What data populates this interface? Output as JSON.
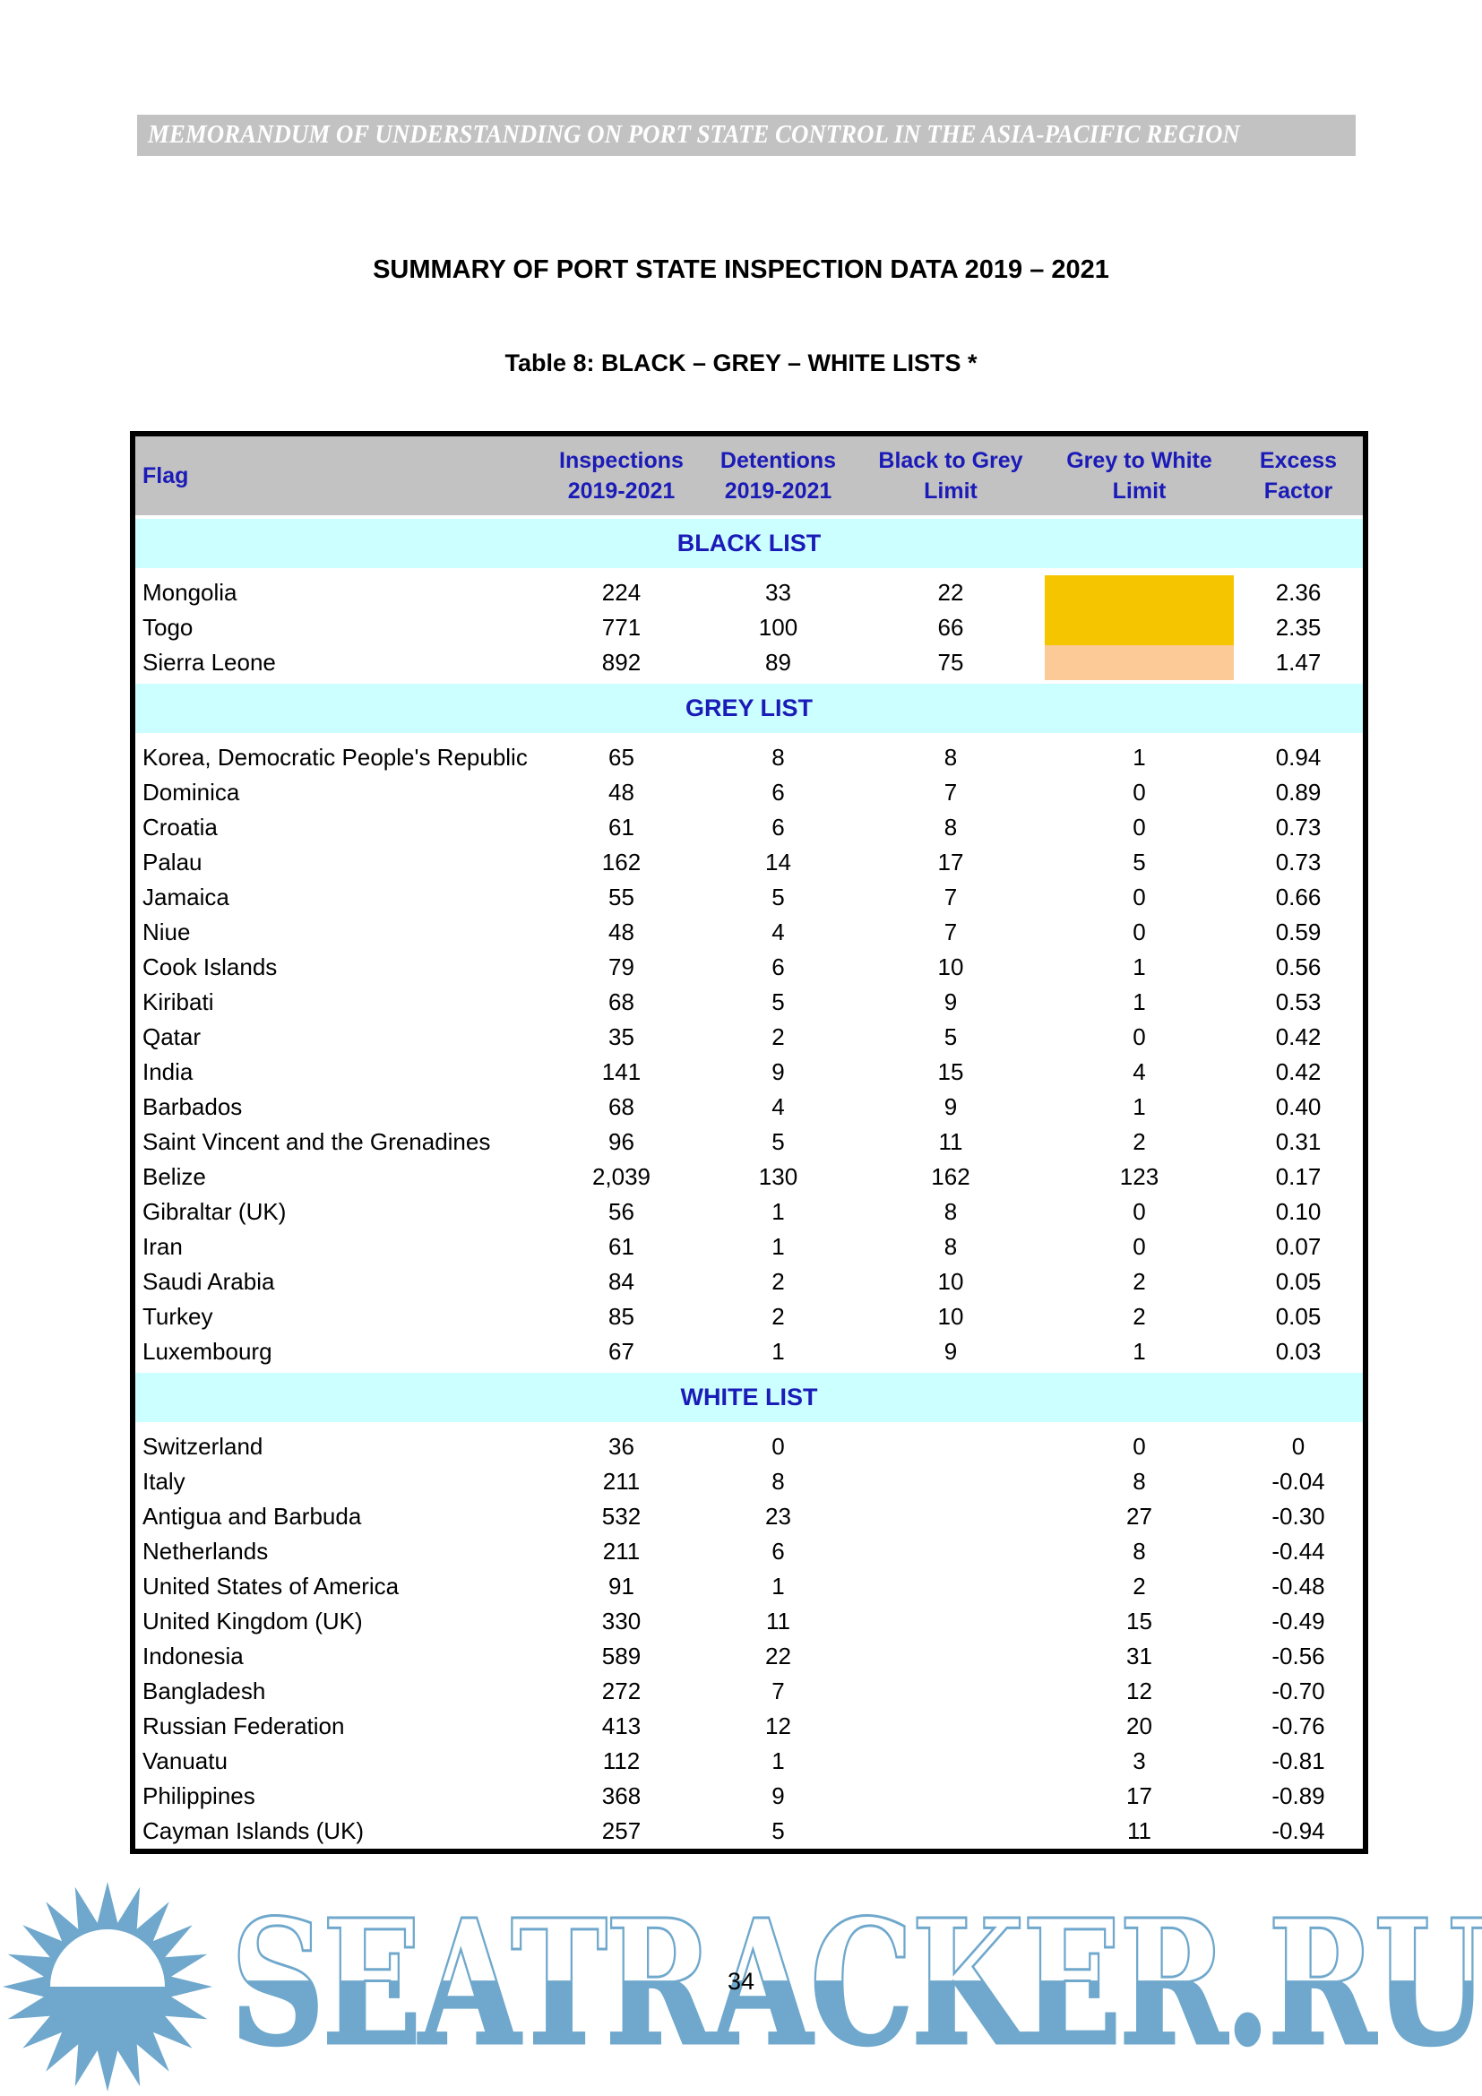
{
  "page": {
    "banner": "MEMORANDUM OF UNDERSTANDING ON PORT STATE CONTROL IN THE ASIA-PACIFIC REGION",
    "title": "SUMMARY OF PORT STATE INSPECTION DATA 2019 – 2021",
    "subtitle": "Table 8: BLACK – GREY – WHITE LISTS *",
    "page_number": "34",
    "watermark": "SEATRACKER.RU"
  },
  "colors": {
    "grey": "#C2C2C2",
    "blue": "#1B1BB8",
    "cyan": "#CCFFFF",
    "gold": "#F5C500",
    "peach": "#FBCA96",
    "wmblue": "#6FA8CC"
  },
  "table": {
    "columns": [
      {
        "line1": "Flag",
        "line2": ""
      },
      {
        "line1": "Inspections",
        "line2": "2019-2021"
      },
      {
        "line1": "Detentions",
        "line2": "2019-2021"
      },
      {
        "line1": "Black to Grey",
        "line2": "Limit"
      },
      {
        "line1": "Grey to White",
        "line2": "Limit"
      },
      {
        "line1": "Excess",
        "line2": "Factor"
      }
    ],
    "sections": [
      {
        "name": "BLACK LIST",
        "rows": [
          {
            "flag": "Mongolia",
            "inspections": "224",
            "detentions": "33",
            "btg": "22",
            "gtw": "",
            "excess": "2.36",
            "gtw_bg": "gold"
          },
          {
            "flag": "Togo",
            "inspections": "771",
            "detentions": "100",
            "btg": "66",
            "gtw": "",
            "excess": "2.35",
            "gtw_bg": "gold"
          },
          {
            "flag": "Sierra Leone",
            "inspections": "892",
            "detentions": "89",
            "btg": "75",
            "gtw": "",
            "excess": "1.47",
            "gtw_bg": "peach"
          }
        ]
      },
      {
        "name": "GREY LIST",
        "rows": [
          {
            "flag": "Korea, Democratic People's Republic",
            "inspections": "65",
            "detentions": "8",
            "btg": "8",
            "gtw": "1",
            "excess": "0.94"
          },
          {
            "flag": "Dominica",
            "inspections": "48",
            "detentions": "6",
            "btg": "7",
            "gtw": "0",
            "excess": "0.89"
          },
          {
            "flag": "Croatia",
            "inspections": "61",
            "detentions": "6",
            "btg": "8",
            "gtw": "0",
            "excess": "0.73"
          },
          {
            "flag": "Palau",
            "inspections": "162",
            "detentions": "14",
            "btg": "17",
            "gtw": "5",
            "excess": "0.73"
          },
          {
            "flag": "Jamaica",
            "inspections": "55",
            "detentions": "5",
            "btg": "7",
            "gtw": "0",
            "excess": "0.66"
          },
          {
            "flag": "Niue",
            "inspections": "48",
            "detentions": "4",
            "btg": "7",
            "gtw": "0",
            "excess": "0.59"
          },
          {
            "flag": "Cook Islands",
            "inspections": "79",
            "detentions": "6",
            "btg": "10",
            "gtw": "1",
            "excess": "0.56"
          },
          {
            "flag": "Kiribati",
            "inspections": "68",
            "detentions": "5",
            "btg": "9",
            "gtw": "1",
            "excess": "0.53"
          },
          {
            "flag": "Qatar",
            "inspections": "35",
            "detentions": "2",
            "btg": "5",
            "gtw": "0",
            "excess": "0.42"
          },
          {
            "flag": "India",
            "inspections": "141",
            "detentions": "9",
            "btg": "15",
            "gtw": "4",
            "excess": "0.42"
          },
          {
            "flag": "Barbados",
            "inspections": "68",
            "detentions": "4",
            "btg": "9",
            "gtw": "1",
            "excess": "0.40"
          },
          {
            "flag": "Saint Vincent and the Grenadines",
            "inspections": "96",
            "detentions": "5",
            "btg": "11",
            "gtw": "2",
            "excess": "0.31"
          },
          {
            "flag": "Belize",
            "inspections": "2,039",
            "detentions": "130",
            "btg": "162",
            "gtw": "123",
            "excess": "0.17"
          },
          {
            "flag": "Gibraltar (UK)",
            "inspections": "56",
            "detentions": "1",
            "btg": "8",
            "gtw": "0",
            "excess": "0.10"
          },
          {
            "flag": "Iran",
            "inspections": "61",
            "detentions": "1",
            "btg": "8",
            "gtw": "0",
            "excess": "0.07"
          },
          {
            "flag": "Saudi Arabia",
            "inspections": "84",
            "detentions": "2",
            "btg": "10",
            "gtw": "2",
            "excess": "0.05"
          },
          {
            "flag": "Turkey",
            "inspections": "85",
            "detentions": "2",
            "btg": "10",
            "gtw": "2",
            "excess": "0.05"
          },
          {
            "flag": "Luxembourg",
            "inspections": "67",
            "detentions": "1",
            "btg": "9",
            "gtw": "1",
            "excess": "0.03"
          }
        ]
      },
      {
        "name": "WHITE LIST",
        "rows": [
          {
            "flag": "Switzerland",
            "inspections": "36",
            "detentions": "0",
            "btg": "",
            "gtw": "0",
            "excess": "0"
          },
          {
            "flag": "Italy",
            "inspections": "211",
            "detentions": "8",
            "btg": "",
            "gtw": "8",
            "excess": "-0.04"
          },
          {
            "flag": "Antigua and Barbuda",
            "inspections": "532",
            "detentions": "23",
            "btg": "",
            "gtw": "27",
            "excess": "-0.30"
          },
          {
            "flag": "Netherlands",
            "inspections": "211",
            "detentions": "6",
            "btg": "",
            "gtw": "8",
            "excess": "-0.44"
          },
          {
            "flag": "United States of America",
            "inspections": "91",
            "detentions": "1",
            "btg": "",
            "gtw": "2",
            "excess": "-0.48"
          },
          {
            "flag": "United Kingdom (UK)",
            "inspections": "330",
            "detentions": "11",
            "btg": "",
            "gtw": "15",
            "excess": "-0.49"
          },
          {
            "flag": "Indonesia",
            "inspections": "589",
            "detentions": "22",
            "btg": "",
            "gtw": "31",
            "excess": "-0.56"
          },
          {
            "flag": "Bangladesh",
            "inspections": "272",
            "detentions": "7",
            "btg": "",
            "gtw": "12",
            "excess": "-0.70"
          },
          {
            "flag": "Russian Federation",
            "inspections": "413",
            "detentions": "12",
            "btg": "",
            "gtw": "20",
            "excess": "-0.76"
          },
          {
            "flag": "Vanuatu",
            "inspections": "112",
            "detentions": "1",
            "btg": "",
            "gtw": "3",
            "excess": "-0.81"
          },
          {
            "flag": "Philippines",
            "inspections": "368",
            "detentions": "9",
            "btg": "",
            "gtw": "17",
            "excess": "-0.89"
          },
          {
            "flag": "Cayman Islands (UK)",
            "inspections": "257",
            "detentions": "5",
            "btg": "",
            "gtw": "11",
            "excess": "-0.94"
          }
        ]
      }
    ]
  }
}
